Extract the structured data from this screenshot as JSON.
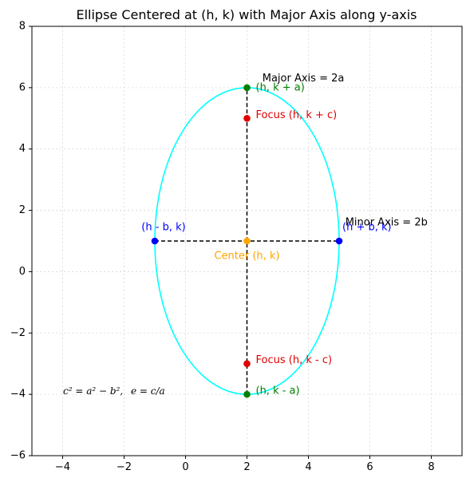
{
  "chart_data": {
    "type": "scatter",
    "title": "Ellipse Centered at (h, k) with Major Axis along y-axis",
    "xlabel": "",
    "ylabel": "",
    "xlim": [
      -5,
      9
    ],
    "ylim": [
      -6,
      8
    ],
    "x_ticks": [
      -4,
      -2,
      0,
      2,
      4,
      6,
      8
    ],
    "y_ticks": [
      -6,
      -4,
      -2,
      0,
      2,
      4,
      6,
      8
    ],
    "x_tick_labels": [
      "−4",
      "−2",
      "0",
      "2",
      "4",
      "6",
      "8"
    ],
    "y_tick_labels": [
      "−6",
      "−4",
      "−2",
      "0",
      "2",
      "4",
      "6",
      "8"
    ],
    "grid": true,
    "ellipse": {
      "h": 2,
      "k": 1,
      "a": 5,
      "b": 3,
      "color": "#00ffff"
    },
    "axes_lines": [
      {
        "x": [
          2,
          2
        ],
        "y": [
          -4,
          6
        ],
        "color": "#000000",
        "style": "dashed"
      },
      {
        "x": [
          -1,
          5
        ],
        "y": [
          1,
          1
        ],
        "color": "#000000",
        "style": "dashed"
      }
    ],
    "points": [
      {
        "x": 2,
        "y": 6,
        "color": "#008000",
        "label": "(h, k + a)",
        "label_color": "#008000"
      },
      {
        "x": 2,
        "y": -4,
        "color": "#008000",
        "label": "(h, k - a)",
        "label_color": "#008000"
      },
      {
        "x": 2,
        "y": 5,
        "color": "#e00000",
        "label": "Focus (h, k + c)",
        "label_color": "#e00000"
      },
      {
        "x": 2,
        "y": -3,
        "color": "#e00000",
        "label": "Focus (h, k - c)",
        "label_color": "#e00000"
      },
      {
        "x": -1,
        "y": 1,
        "color": "#0000ff",
        "label": "(h - b, k)",
        "label_color": "#0000ff"
      },
      {
        "x": 5,
        "y": 1,
        "color": "#0000ff",
        "label": "(h + b, k)",
        "label_color": "#0000ff"
      },
      {
        "x": 2,
        "y": 1,
        "color": "#ffa500",
        "label": "Center (h, k)",
        "label_color": "#ffa500"
      }
    ],
    "annotations": [
      {
        "text": "Major Axis = 2a",
        "x": 2.5,
        "y": 6.3,
        "color": "#000000"
      },
      {
        "text": "Minor Axis = 2b",
        "x": 5.2,
        "y": 1.6,
        "color": "#000000"
      }
    ],
    "formula": {
      "part1": "c² = a² − b²,",
      "part2": "e = c/a"
    }
  }
}
